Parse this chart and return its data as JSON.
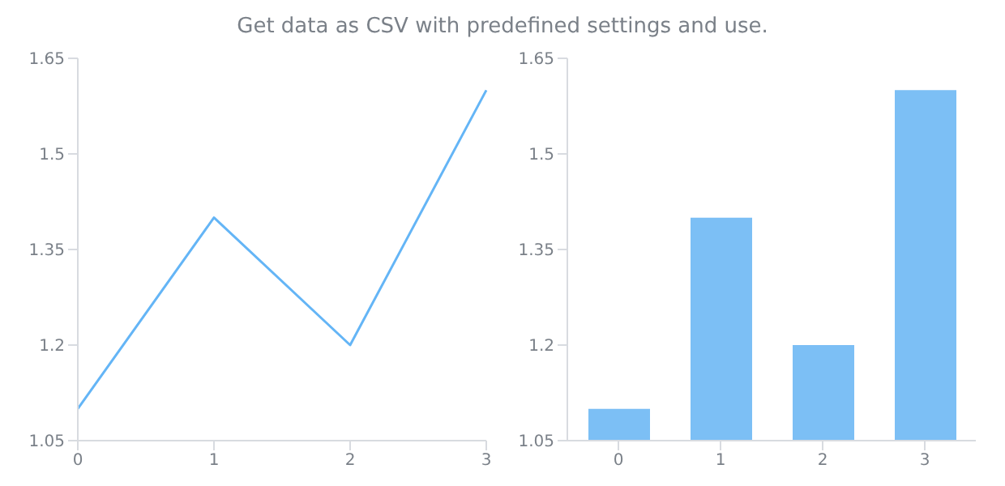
{
  "chart_data": [
    {
      "type": "line",
      "title": "Get data as CSV with predefined settings and use.",
      "categories": [
        "0",
        "1",
        "2",
        "3"
      ],
      "values": [
        1.1,
        1.4,
        1.2,
        1.6
      ],
      "color": "#64b5f6",
      "ylim": [
        1.05,
        1.65
      ],
      "yticks": [
        1.05,
        1.2,
        1.35,
        1.5,
        1.65
      ],
      "marker": "none"
    },
    {
      "type": "bar",
      "categories": [
        "0",
        "1",
        "2",
        "3"
      ],
      "values": [
        1.1,
        1.4,
        1.2,
        1.6
      ],
      "color": "#7cbff5",
      "ylim": [
        1.05,
        1.65
      ],
      "yticks": [
        1.05,
        1.2,
        1.35,
        1.5,
        1.65
      ]
    }
  ]
}
